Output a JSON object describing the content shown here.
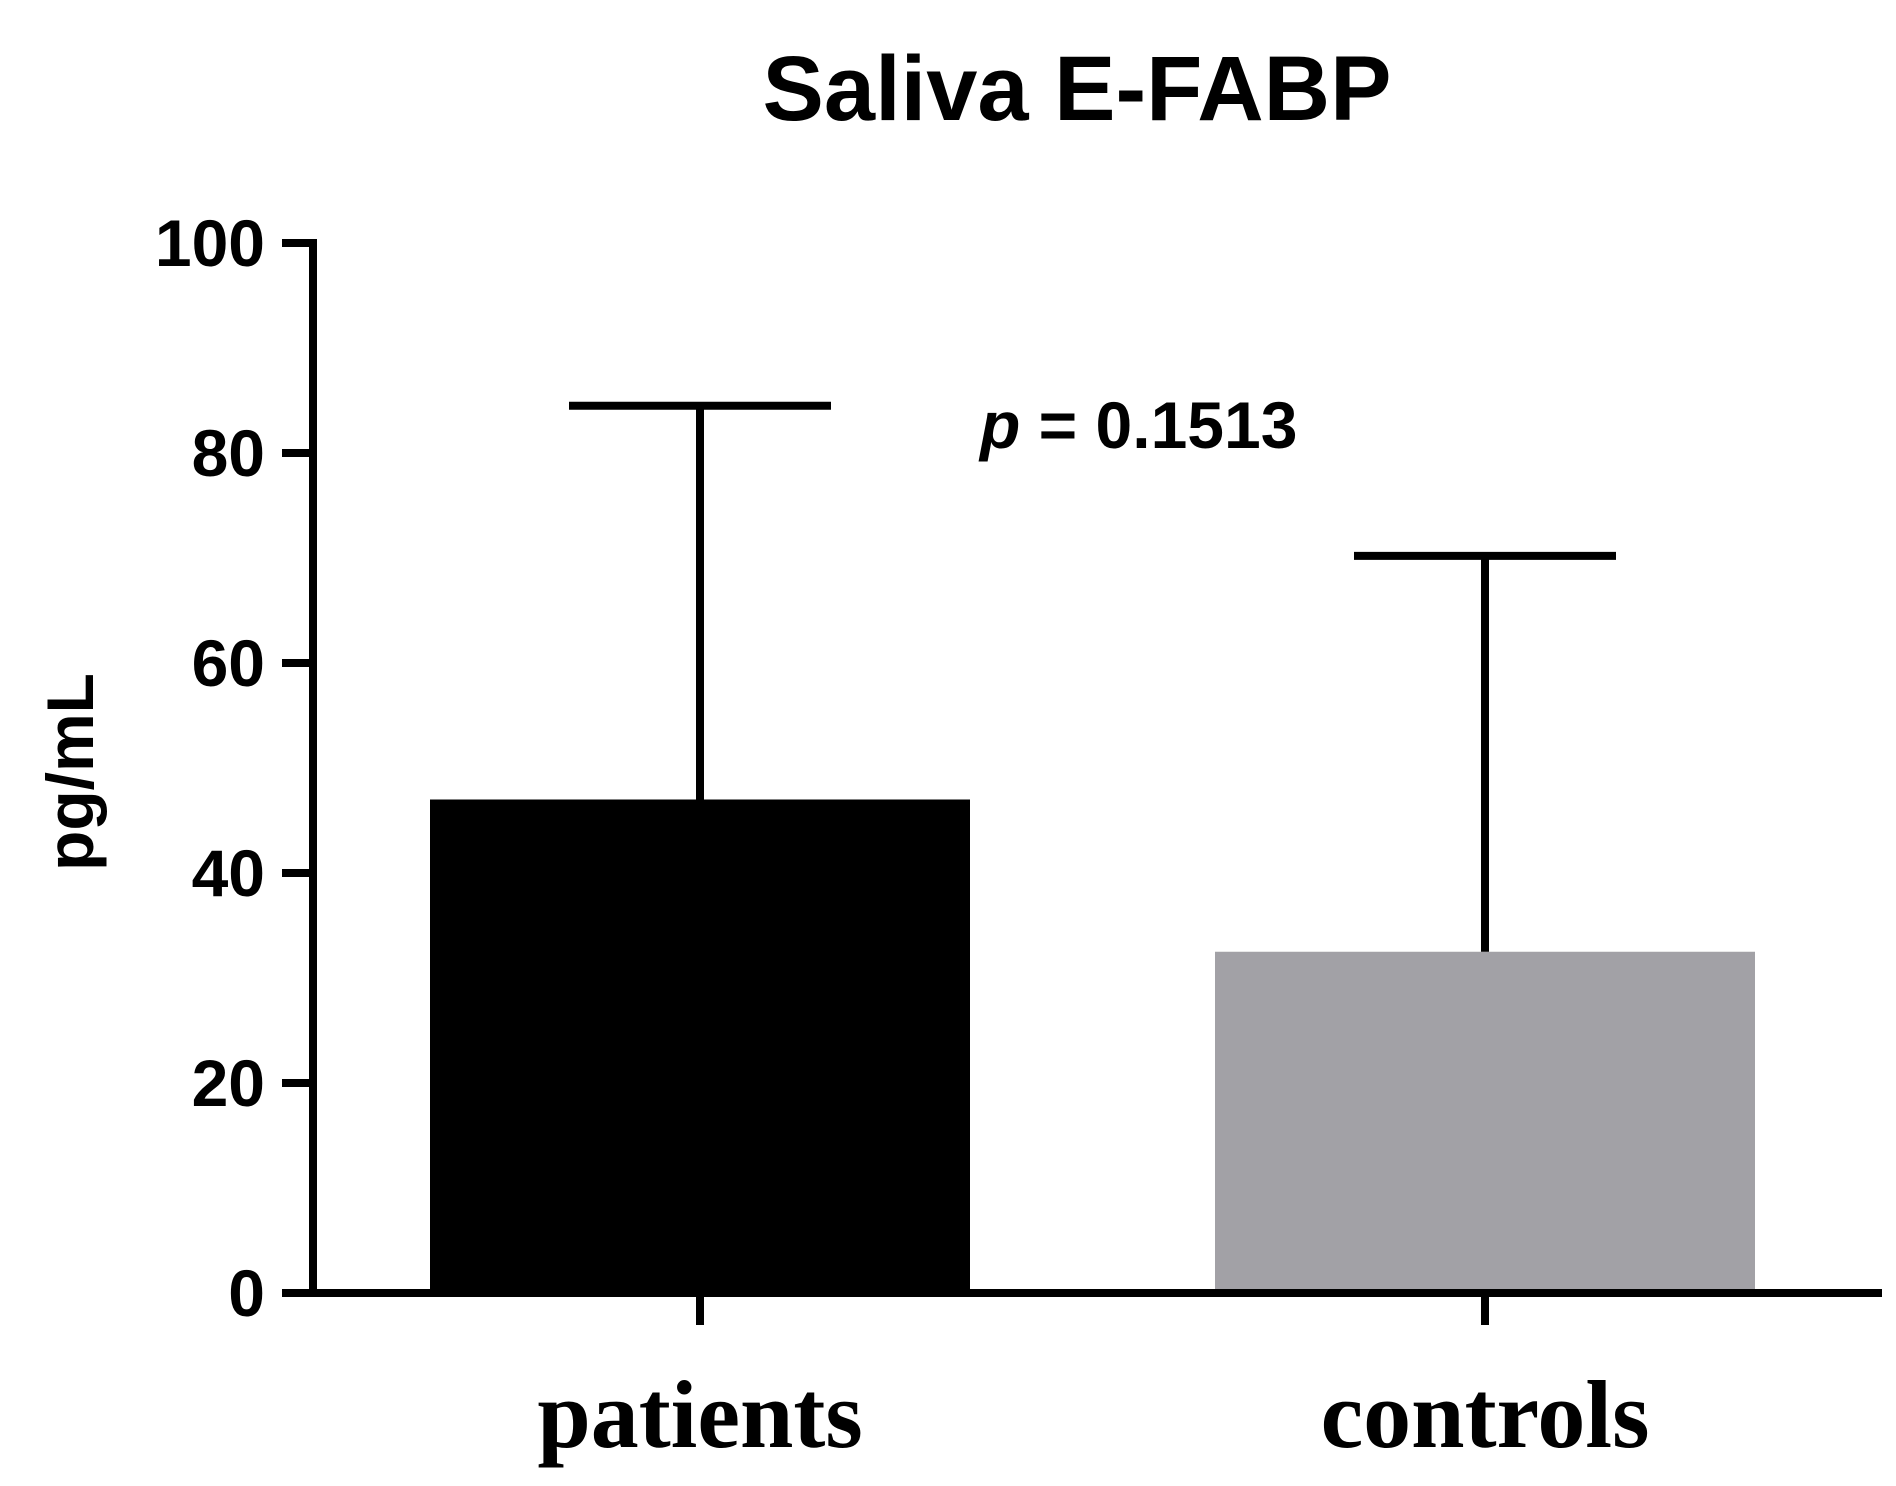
{
  "chart_data": {
    "type": "bar",
    "title": "Saliva E-FABP",
    "xlabel": "",
    "ylabel": "pg/mL",
    "ylim": [
      0,
      100
    ],
    "yticks": [
      0,
      20,
      40,
      60,
      80,
      100
    ],
    "yticks_labels": [
      "0",
      "20",
      "40",
      "60",
      "80",
      "100"
    ],
    "categories": [
      "patients",
      "controls"
    ],
    "values": [
      47,
      32.5
    ],
    "error_upper": [
      84.5,
      70.2
    ],
    "bar_colors": [
      "#000000",
      "#a2a1a6"
    ],
    "annotation": {
      "symbol": "p",
      "text": " = 0.1513"
    },
    "grid": false,
    "legend": "none"
  }
}
